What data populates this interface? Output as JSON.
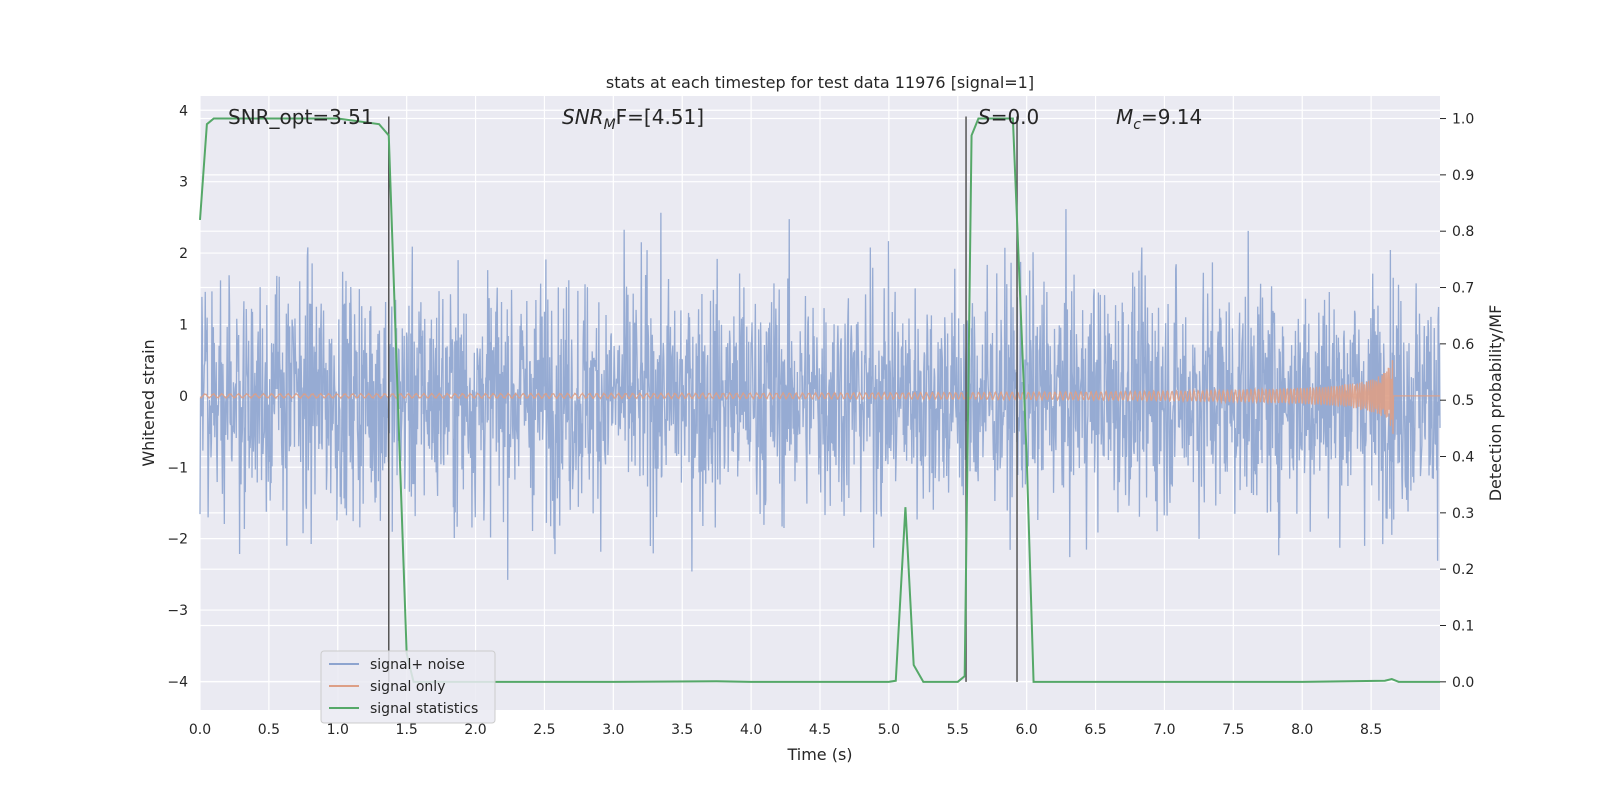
{
  "chart_data": {
    "type": "line",
    "title": "stats at each timestep for test data 11976 [signal=1]",
    "xlabel": "Time (s)",
    "ylabel_left": "Whitened strain",
    "ylabel_right": "Detection probability/MF",
    "xlim": [
      0.0,
      9.0
    ],
    "ylim_left": [
      -4.4,
      4.2
    ],
    "ylim_right": [
      -0.05,
      1.04
    ],
    "x_ticks": [
      0.0,
      0.5,
      1.0,
      1.5,
      2.0,
      2.5,
      3.0,
      3.5,
      4.0,
      4.5,
      5.0,
      5.5,
      6.0,
      6.5,
      7.0,
      7.5,
      8.0,
      8.5
    ],
    "x_tick_labels": [
      "0.0",
      "0.5",
      "1.0",
      "1.5",
      "2.0",
      "2.5",
      "3.0",
      "3.5",
      "4.0",
      "4.5",
      "5.0",
      "5.5",
      "6.0",
      "6.5",
      "7.0",
      "7.5",
      "8.0",
      "8.5"
    ],
    "y_left_ticks": [
      4,
      3,
      2,
      1,
      0,
      -1,
      -2,
      -3,
      -4
    ],
    "y_left_tick_labels": [
      "4",
      "3",
      "2",
      "1",
      "0",
      "−1",
      "−2",
      "−3",
      "−4"
    ],
    "y_right_ticks": [
      1.0,
      0.9,
      0.8,
      0.7,
      0.6,
      0.5,
      0.4,
      0.3,
      0.2,
      0.1,
      0.0
    ],
    "y_right_tick_labels": [
      "1.0",
      "0.9",
      "0.8",
      "0.7",
      "0.6",
      "0.5",
      "0.4",
      "0.3",
      "0.2",
      "0.1",
      "0.0"
    ],
    "grid": true,
    "legend_position": "lower-left",
    "annotations": {
      "snr_opt": "SNR_opt=3.51",
      "snr_mf_main": "SNR",
      "snr_mf_sub": "M",
      "snr_mf_rest": "F=[4.51]",
      "s_main": "S",
      "s_rest": "=0.0",
      "mc_main": "M",
      "mc_sub": "c",
      "mc_rest": "=9.14"
    },
    "vertical_lines_x": [
      1.37,
      5.56,
      5.93
    ],
    "series": [
      {
        "name": "signal+ noise",
        "color": "#8da4cf",
        "axis": "left",
        "description_note_none": "",
        "envelope_x": [
          0.0,
          0.5,
          1.0,
          1.5,
          2.0,
          2.5,
          3.0,
          3.5,
          4.0,
          4.5,
          5.0,
          5.5,
          6.0,
          6.5,
          7.0,
          7.5,
          8.0,
          8.5,
          9.0
        ],
        "seed": 11976
      },
      {
        "name": "signal only",
        "color": "#dd9f86",
        "axis": "left",
        "chirp_end_time": 8.66,
        "chirp_peak_amplitude": 0.55
      },
      {
        "name": "signal statistics",
        "color": "#55a868",
        "axis": "right",
        "x": [
          0.0,
          0.05,
          0.1,
          0.5,
          1.0,
          1.3,
          1.37,
          1.45,
          1.5,
          1.55,
          2.0,
          3.0,
          3.75,
          4.0,
          5.0,
          5.05,
          5.12,
          5.18,
          5.25,
          5.3,
          5.5,
          5.55,
          5.6,
          5.65,
          5.7,
          5.9,
          6.0,
          6.05,
          6.1,
          7.0,
          8.0,
          8.6,
          8.65,
          8.7,
          9.0
        ],
        "y": [
          0.82,
          0.99,
          1.0,
          1.0,
          1.0,
          0.99,
          0.97,
          0.4,
          0.05,
          0.0,
          0.0,
          0.0,
          0.001,
          0.0,
          0.0,
          0.002,
          0.31,
          0.03,
          0.0,
          0.0,
          0.0,
          0.01,
          0.97,
          1.0,
          1.0,
          1.0,
          0.4,
          0.0,
          0.0,
          0.0,
          0.0,
          0.002,
          0.005,
          0.0,
          0.0
        ]
      }
    ]
  }
}
